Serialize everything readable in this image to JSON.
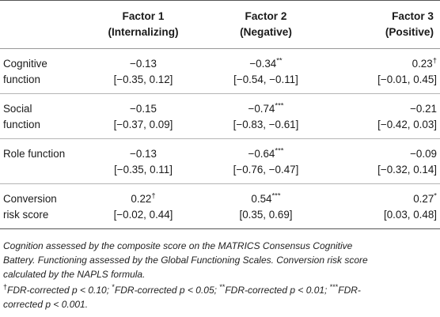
{
  "header": {
    "columns": [
      {
        "line1": "",
        "line2": ""
      },
      {
        "line1": "Factor 1",
        "line2": "(Internalizing)"
      },
      {
        "line1": "Factor 2",
        "line2": "(Negative)"
      },
      {
        "line1": "Factor 3",
        "line2": "(Positive)"
      }
    ]
  },
  "rows": [
    {
      "label_lines": [
        "Cognitive",
        "function"
      ],
      "cells": [
        {
          "est": "−0.13",
          "sig": "",
          "ci": "[−0.35, 0.12]"
        },
        {
          "est": "−0.34",
          "sig": "**",
          "ci": "[−0.54, −0.11]"
        },
        {
          "est": "0.23",
          "sig": "†",
          "ci": "[−0.01, 0.45]"
        }
      ]
    },
    {
      "label_lines": [
        "Social",
        "function"
      ],
      "cells": [
        {
          "est": "−0.15",
          "sig": "",
          "ci": "[−0.37, 0.09]"
        },
        {
          "est": "−0.74",
          "sig": "***",
          "ci": "[−0.83, −0.61]"
        },
        {
          "est": "−0.21",
          "sig": "",
          "ci": "[−0.42, 0.03]"
        }
      ]
    },
    {
      "label_lines": [
        "Role function",
        ""
      ],
      "cells": [
        {
          "est": "−0.13",
          "sig": "",
          "ci": "[−0.35, 0.11]"
        },
        {
          "est": "−0.64",
          "sig": "***",
          "ci": "[−0.76, −0.47]"
        },
        {
          "est": "−0.09",
          "sig": "",
          "ci": "[−0.32, 0.14]"
        }
      ]
    },
    {
      "label_lines": [
        "Conversion",
        "risk score"
      ],
      "cells": [
        {
          "est": "0.22",
          "sig": "†",
          "ci": "[−0.02, 0.44]"
        },
        {
          "est": "0.54",
          "sig": "***",
          "ci": "[0.35, 0.69]"
        },
        {
          "est": "0.27",
          "sig": "*",
          "ci": "[0.03, 0.48]"
        }
      ]
    }
  ],
  "notes": {
    "lines": [
      "Cognition assessed by the composite score on the MATRICS Consensus Cognitive",
      "Battery. Functioning assessed by the Global Functioning Scales. Conversion risk score",
      "calculated by the NAPLS formula."
    ],
    "footnote_marks": [
      "†",
      "*",
      "**",
      "***"
    ],
    "footnote_parts": [
      "FDR-corrected p < 0.10; ",
      "FDR-corrected p < 0.05; ",
      "FDR-corrected p < 0.01; ",
      "FDR-"
    ],
    "footnote_line2": "corrected p < 0.001."
  }
}
